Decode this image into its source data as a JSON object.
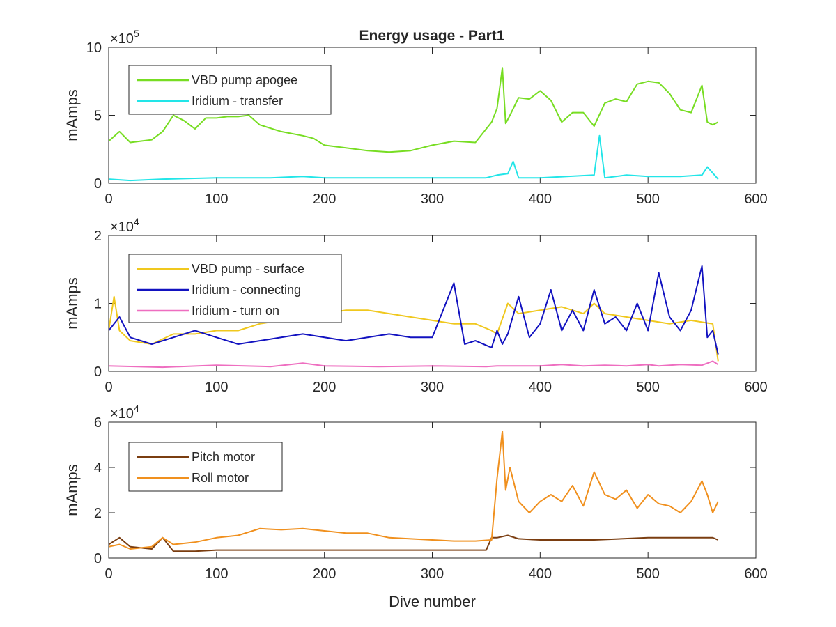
{
  "figure": {
    "title": "Energy usage - Part1"
  },
  "chart_data": [
    {
      "type": "line",
      "title": "Energy usage - Part1",
      "xlabel": "",
      "ylabel": "mAmps",
      "exponent_label": "×10^5",
      "exponent_base": "×10",
      "exponent_power": "5",
      "xlim": [
        0,
        600
      ],
      "ylim": [
        0,
        10
      ],
      "xticks": [
        "0",
        "100",
        "200",
        "300",
        "400",
        "500",
        "600"
      ],
      "yticks": [
        "0",
        "5",
        "10"
      ],
      "legend_position": "top-left",
      "series": [
        {
          "name": "VBD pump apogee",
          "color": "#77dd22",
          "x": [
            0,
            10,
            20,
            40,
            50,
            60,
            70,
            80,
            90,
            100,
            110,
            120,
            130,
            140,
            160,
            180,
            190,
            200,
            220,
            240,
            260,
            280,
            300,
            320,
            340,
            355,
            360,
            365,
            368,
            372,
            380,
            390,
            400,
            410,
            420,
            430,
            440,
            450,
            460,
            470,
            480,
            490,
            500,
            510,
            520,
            530,
            540,
            550,
            555,
            560,
            565
          ],
          "y": [
            3.1,
            3.8,
            3.0,
            3.2,
            3.8,
            5.0,
            4.6,
            4.0,
            4.8,
            4.8,
            4.9,
            4.9,
            5.0,
            4.3,
            3.8,
            3.5,
            3.3,
            2.8,
            2.6,
            2.4,
            2.3,
            2.4,
            2.8,
            3.1,
            3.0,
            4.5,
            5.5,
            8.5,
            4.4,
            5.0,
            6.3,
            6.2,
            6.8,
            6.1,
            4.5,
            5.2,
            5.2,
            4.2,
            5.9,
            6.2,
            6.0,
            7.3,
            7.5,
            7.4,
            6.6,
            5.4,
            5.2,
            7.2,
            4.5,
            4.3,
            4.5
          ]
        },
        {
          "name": "Iridium - transfer",
          "color": "#22e5e8",
          "x": [
            0,
            20,
            50,
            100,
            150,
            180,
            200,
            250,
            300,
            350,
            360,
            370,
            375,
            380,
            400,
            450,
            455,
            460,
            480,
            500,
            530,
            550,
            555,
            565
          ],
          "y": [
            0.3,
            0.2,
            0.3,
            0.4,
            0.4,
            0.5,
            0.4,
            0.4,
            0.4,
            0.4,
            0.6,
            0.7,
            1.6,
            0.4,
            0.4,
            0.6,
            3.5,
            0.4,
            0.6,
            0.5,
            0.5,
            0.6,
            1.2,
            0.3
          ]
        }
      ]
    },
    {
      "type": "line",
      "title": "",
      "xlabel": "",
      "ylabel": "mAmps",
      "exponent_label": "×10^4",
      "exponent_base": "×10",
      "exponent_power": "4",
      "xlim": [
        0,
        600
      ],
      "ylim": [
        0,
        2
      ],
      "xticks": [
        "0",
        "100",
        "200",
        "300",
        "400",
        "500",
        "600"
      ],
      "yticks": [
        "0",
        "1",
        "2"
      ],
      "legend_position": "top-left",
      "series": [
        {
          "name": "VBD pump - surface",
          "color": "#f0c81e",
          "x": [
            0,
            5,
            10,
            20,
            40,
            60,
            80,
            100,
            120,
            140,
            160,
            180,
            200,
            220,
            240,
            260,
            280,
            300,
            320,
            340,
            355,
            360,
            370,
            380,
            400,
            420,
            440,
            450,
            460,
            480,
            500,
            520,
            540,
            560,
            565
          ],
          "y": [
            0.6,
            1.1,
            0.6,
            0.45,
            0.4,
            0.55,
            0.55,
            0.6,
            0.6,
            0.7,
            0.75,
            0.8,
            0.85,
            0.9,
            0.9,
            0.85,
            0.8,
            0.75,
            0.7,
            0.7,
            0.6,
            0.55,
            1.0,
            0.85,
            0.9,
            0.95,
            0.85,
            1.0,
            0.85,
            0.8,
            0.75,
            0.7,
            0.75,
            0.7,
            0.15
          ]
        },
        {
          "name": "Iridium - connecting",
          "color": "#1212c0",
          "x": [
            0,
            10,
            20,
            40,
            60,
            80,
            100,
            120,
            140,
            160,
            180,
            200,
            220,
            240,
            260,
            280,
            300,
            320,
            330,
            340,
            355,
            360,
            365,
            370,
            380,
            390,
            400,
            410,
            420,
            430,
            440,
            450,
            460,
            470,
            480,
            490,
            500,
            510,
            520,
            530,
            540,
            550,
            555,
            560,
            565
          ],
          "y": [
            0.6,
            0.8,
            0.5,
            0.4,
            0.5,
            0.6,
            0.5,
            0.4,
            0.45,
            0.5,
            0.55,
            0.5,
            0.45,
            0.5,
            0.55,
            0.5,
            0.5,
            1.3,
            0.4,
            0.45,
            0.35,
            0.6,
            0.4,
            0.55,
            1.1,
            0.5,
            0.7,
            1.2,
            0.6,
            0.9,
            0.6,
            1.2,
            0.7,
            0.8,
            0.6,
            1.0,
            0.6,
            1.45,
            0.8,
            0.6,
            0.9,
            1.55,
            0.5,
            0.6,
            0.25
          ]
        },
        {
          "name": "Iridium - turn on",
          "color": "#ee6ec0",
          "x": [
            0,
            50,
            100,
            150,
            180,
            200,
            250,
            300,
            350,
            360,
            400,
            420,
            440,
            460,
            480,
            500,
            510,
            530,
            550,
            560,
            565
          ],
          "y": [
            0.08,
            0.06,
            0.09,
            0.07,
            0.12,
            0.08,
            0.07,
            0.08,
            0.07,
            0.08,
            0.08,
            0.1,
            0.08,
            0.09,
            0.08,
            0.1,
            0.08,
            0.1,
            0.09,
            0.15,
            0.1
          ]
        }
      ]
    },
    {
      "type": "line",
      "title": "",
      "xlabel": "Dive number",
      "ylabel": "mAmps",
      "exponent_label": "×10^4",
      "exponent_base": "×10",
      "exponent_power": "4",
      "xlim": [
        0,
        600
      ],
      "ylim": [
        0,
        6
      ],
      "xticks": [
        "0",
        "100",
        "200",
        "300",
        "400",
        "500",
        "600"
      ],
      "yticks": [
        "0",
        "2",
        "4",
        "6"
      ],
      "legend_position": "top-left",
      "series": [
        {
          "name": "Pitch motor",
          "color": "#7a3d10",
          "x": [
            0,
            10,
            20,
            40,
            50,
            60,
            80,
            100,
            150,
            200,
            250,
            300,
            350,
            355,
            360,
            370,
            380,
            400,
            450,
            500,
            550,
            560,
            565
          ],
          "y": [
            0.6,
            0.9,
            0.5,
            0.4,
            0.9,
            0.3,
            0.3,
            0.35,
            0.35,
            0.35,
            0.35,
            0.35,
            0.35,
            0.9,
            0.9,
            1.0,
            0.85,
            0.8,
            0.8,
            0.9,
            0.9,
            0.9,
            0.8
          ]
        },
        {
          "name": "Roll motor",
          "color": "#f0901e",
          "x": [
            0,
            10,
            20,
            40,
            50,
            60,
            80,
            100,
            120,
            140,
            160,
            180,
            200,
            220,
            240,
            260,
            280,
            300,
            320,
            340,
            355,
            360,
            365,
            368,
            372,
            380,
            390,
            400,
            410,
            420,
            430,
            440,
            450,
            460,
            470,
            480,
            490,
            500,
            510,
            520,
            530,
            540,
            550,
            555,
            560,
            565
          ],
          "y": [
            0.5,
            0.6,
            0.4,
            0.5,
            0.9,
            0.6,
            0.7,
            0.9,
            1.0,
            1.3,
            1.25,
            1.3,
            1.2,
            1.1,
            1.1,
            0.9,
            0.85,
            0.8,
            0.75,
            0.75,
            0.8,
            3.5,
            5.6,
            3.0,
            4.0,
            2.5,
            2.0,
            2.5,
            2.8,
            2.5,
            3.2,
            2.3,
            3.8,
            2.8,
            2.6,
            3.0,
            2.2,
            2.8,
            2.4,
            2.3,
            2.0,
            2.5,
            3.4,
            2.8,
            2.0,
            2.5
          ]
        }
      ]
    }
  ]
}
